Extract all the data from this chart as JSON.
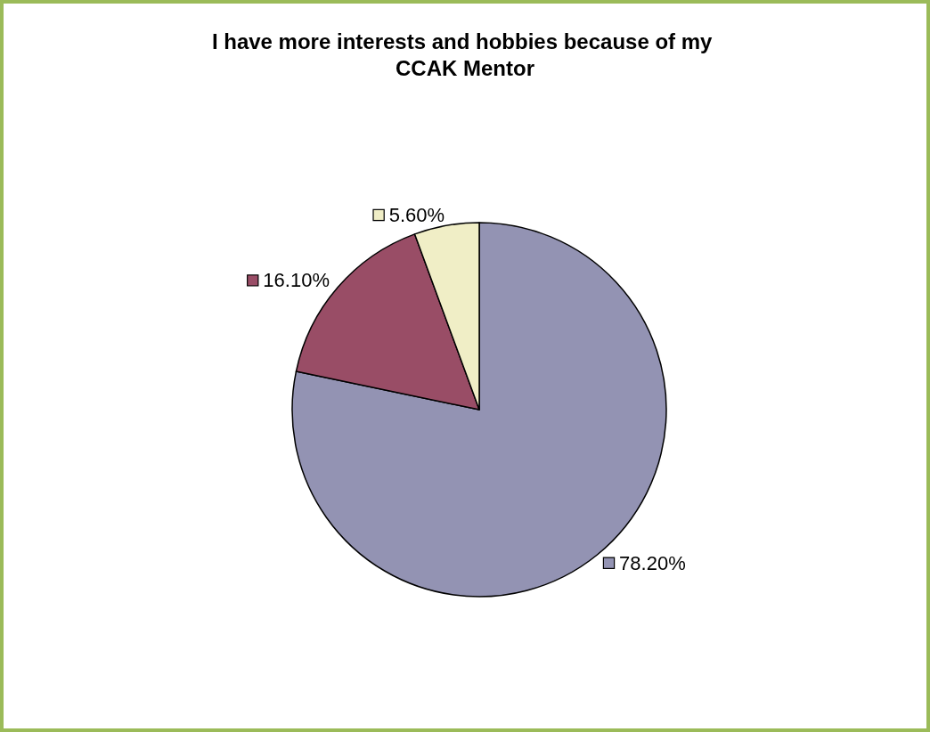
{
  "chart_data": {
    "type": "pie",
    "title": "I have more interests and hobbies because of my CCAK Mentor",
    "categories": [
      null,
      null,
      null
    ],
    "values": [
      78.2,
      16.1,
      5.6
    ],
    "colors": [
      "#9393b3",
      "#994d66",
      "#f0eec6"
    ],
    "value_labels": [
      "78.20%",
      "16.10%",
      "5.60%"
    ]
  }
}
